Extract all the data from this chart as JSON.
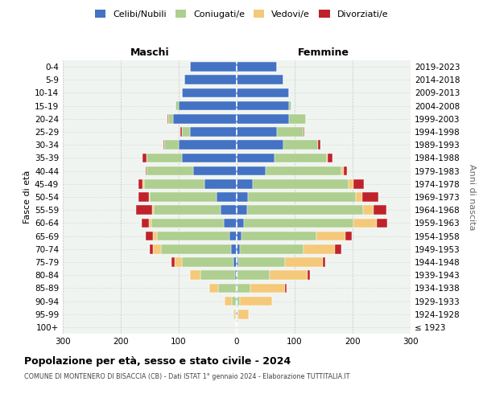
{
  "age_groups": [
    "100+",
    "95-99",
    "90-94",
    "85-89",
    "80-84",
    "75-79",
    "70-74",
    "65-69",
    "60-64",
    "55-59",
    "50-54",
    "45-49",
    "40-44",
    "35-39",
    "30-34",
    "25-29",
    "20-24",
    "15-19",
    "10-14",
    "5-9",
    "0-4"
  ],
  "birth_years": [
    "≤ 1923",
    "1924-1928",
    "1929-1933",
    "1934-1938",
    "1939-1943",
    "1944-1948",
    "1949-1953",
    "1954-1958",
    "1959-1963",
    "1964-1968",
    "1969-1973",
    "1974-1978",
    "1979-1983",
    "1984-1988",
    "1989-1993",
    "1994-1998",
    "1999-2003",
    "2004-2008",
    "2009-2013",
    "2014-2018",
    "2019-2023"
  ],
  "colors": {
    "celibi": "#4472C4",
    "coniugati": "#AECF8F",
    "vedovi": "#F5C97A",
    "divorziati": "#C0222C"
  },
  "males": {
    "celibi": [
      0,
      1,
      1,
      2,
      3,
      5,
      10,
      12,
      22,
      28,
      35,
      55,
      75,
      95,
      100,
      80,
      110,
      100,
      95,
      90,
      80
    ],
    "coniugati": [
      1,
      2,
      8,
      30,
      60,
      90,
      120,
      125,
      125,
      115,
      115,
      105,
      80,
      60,
      25,
      15,
      8,
      5,
      0,
      0,
      0
    ],
    "vedovi": [
      0,
      2,
      12,
      15,
      18,
      12,
      15,
      8,
      5,
      3,
      2,
      2,
      0,
      0,
      0,
      0,
      0,
      0,
      0,
      0,
      0
    ],
    "divorziati": [
      0,
      0,
      0,
      0,
      0,
      5,
      5,
      12,
      12,
      28,
      18,
      8,
      2,
      8,
      2,
      2,
      2,
      0,
      0,
      0,
      0
    ]
  },
  "females": {
    "celibi": [
      0,
      1,
      1,
      2,
      2,
      3,
      5,
      8,
      12,
      18,
      20,
      28,
      50,
      65,
      80,
      70,
      90,
      90,
      90,
      80,
      70
    ],
    "coniugati": [
      0,
      2,
      5,
      22,
      55,
      80,
      110,
      130,
      190,
      200,
      185,
      165,
      130,
      90,
      60,
      45,
      30,
      5,
      0,
      0,
      0
    ],
    "vedovi": [
      2,
      18,
      55,
      60,
      65,
      65,
      55,
      50,
      40,
      18,
      12,
      8,
      5,
      2,
      0,
      0,
      0,
      0,
      0,
      0,
      0
    ],
    "divorziati": [
      0,
      0,
      0,
      2,
      5,
      5,
      10,
      10,
      18,
      22,
      28,
      18,
      5,
      8,
      5,
      2,
      0,
      0,
      0,
      0,
      0
    ]
  },
  "xlim": 300,
  "title": "Popolazione per età, sesso e stato civile - 2024",
  "subtitle": "COMUNE DI MONTENERO DI BISACCIA (CB) - Dati ISTAT 1° gennaio 2024 - Elaborazione TUTTITALIA.IT",
  "ylabel_left": "Fasce di età",
  "ylabel_right": "Anni di nascita",
  "header_maschi": "Maschi",
  "header_femmine": "Femmine",
  "legend_labels": [
    "Celibi/Nubili",
    "Coniugati/e",
    "Vedovi/e",
    "Divorziati/e"
  ],
  "bg_color": "#FFFFFF",
  "plot_bg": "#F0F4F0",
  "grid_color": "#BBBBBB"
}
